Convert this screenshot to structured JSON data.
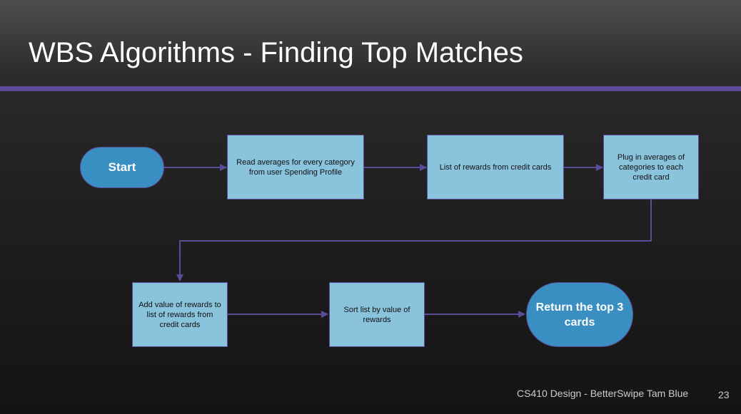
{
  "slide": {
    "title": "WBS Algorithms - Finding Top Matches",
    "footer": "CS410 Design - BetterSwipe Tam Blue",
    "page_number": "23"
  },
  "flowchart": {
    "nodes": [
      {
        "id": "start",
        "shape": "terminal",
        "label": "Start"
      },
      {
        "id": "read-averages",
        "shape": "process",
        "label": "Read averages for every category from user Spending Profile"
      },
      {
        "id": "list-rewards",
        "shape": "process",
        "label": "List of rewards from credit cards"
      },
      {
        "id": "plug-averages",
        "shape": "process",
        "label": "Plug in averages of categories to each credit card"
      },
      {
        "id": "add-value",
        "shape": "process",
        "label": "Add value of rewards to list of rewards from credit cards"
      },
      {
        "id": "sort-list",
        "shape": "process",
        "label": "Sort list by value of rewards"
      },
      {
        "id": "return-top",
        "shape": "terminal",
        "label": "Return the top 3 cards"
      }
    ],
    "edges": [
      {
        "from": "start",
        "to": "read-averages"
      },
      {
        "from": "read-averages",
        "to": "list-rewards"
      },
      {
        "from": "list-rewards",
        "to": "plug-averages"
      },
      {
        "from": "plug-averages",
        "to": "add-value"
      },
      {
        "from": "add-value",
        "to": "sort-list"
      },
      {
        "from": "sort-list",
        "to": "return-top"
      }
    ],
    "colors": {
      "process_fill": "#8ac3dc",
      "terminal_fill": "#3a8fc2",
      "border": "#5b4c9a",
      "connector": "#5b4c9a",
      "title_rule": "#5d4b9c"
    }
  }
}
